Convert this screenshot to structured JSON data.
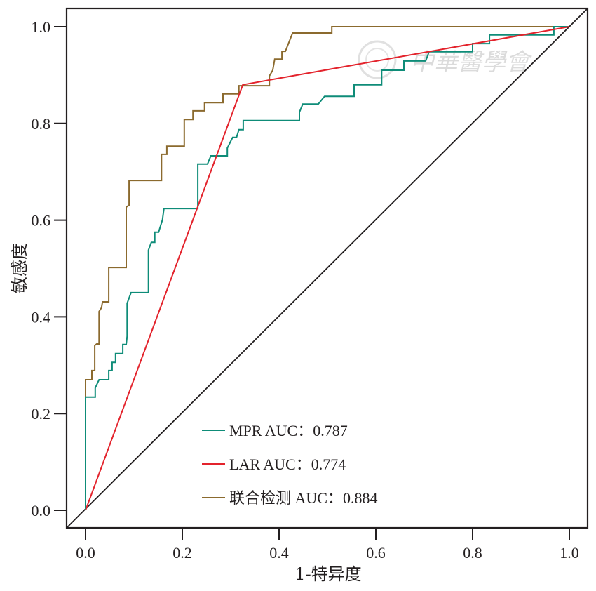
{
  "chart_data": {
    "type": "line",
    "title": "",
    "xlabel": "1-特异度",
    "ylabel": "敏感度",
    "xlim": [
      0,
      1
    ],
    "ylim": [
      0,
      1
    ],
    "x_ticks": [
      "0.0",
      "0.2",
      "0.4",
      "0.6",
      "0.8",
      "1.0"
    ],
    "y_ticks": [
      "0.0",
      "0.2",
      "0.4",
      "0.6",
      "0.8",
      "1.0"
    ],
    "x_tick_values": [
      0,
      0.2,
      0.4,
      0.6,
      0.8,
      1.0
    ],
    "y_tick_values": [
      0,
      0.2,
      0.4,
      0.6,
      0.8,
      1.0
    ],
    "grid": false,
    "legend_position": "bottom-center",
    "reference_line": {
      "name": "diagonal",
      "color": "#231f20"
    },
    "series": [
      {
        "name": "MPR",
        "legend_label": "MPR AUC：0.787",
        "auc": 0.787,
        "color": "#0e8c78",
        "points": [
          [
            0,
            0
          ],
          [
            0,
            0.234
          ],
          [
            0.02,
            0.234
          ],
          [
            0.02,
            0.253
          ],
          [
            0.028,
            0.27
          ],
          [
            0.048,
            0.27
          ],
          [
            0.048,
            0.289
          ],
          [
            0.055,
            0.289
          ],
          [
            0.055,
            0.306
          ],
          [
            0.062,
            0.306
          ],
          [
            0.062,
            0.324
          ],
          [
            0.077,
            0.324
          ],
          [
            0.077,
            0.343
          ],
          [
            0.084,
            0.343
          ],
          [
            0.086,
            0.36
          ],
          [
            0.086,
            0.428
          ],
          [
            0.094,
            0.45
          ],
          [
            0.13,
            0.45
          ],
          [
            0.13,
            0.538
          ],
          [
            0.136,
            0.554
          ],
          [
            0.143,
            0.554
          ],
          [
            0.143,
            0.575
          ],
          [
            0.151,
            0.575
          ],
          [
            0.159,
            0.601
          ],
          [
            0.162,
            0.624
          ],
          [
            0.232,
            0.624
          ],
          [
            0.232,
            0.716
          ],
          [
            0.252,
            0.716
          ],
          [
            0.259,
            0.733
          ],
          [
            0.293,
            0.733
          ],
          [
            0.293,
            0.749
          ],
          [
            0.304,
            0.771
          ],
          [
            0.312,
            0.771
          ],
          [
            0.317,
            0.787
          ],
          [
            0.326,
            0.787
          ],
          [
            0.326,
            0.806
          ],
          [
            0.442,
            0.806
          ],
          [
            0.442,
            0.823
          ],
          [
            0.449,
            0.84
          ],
          [
            0.481,
            0.84
          ],
          [
            0.494,
            0.856
          ],
          [
            0.555,
            0.856
          ],
          [
            0.555,
            0.88
          ],
          [
            0.612,
            0.88
          ],
          [
            0.612,
            0.91
          ],
          [
            0.658,
            0.91
          ],
          [
            0.658,
            0.929
          ],
          [
            0.703,
            0.929
          ],
          [
            0.71,
            0.948
          ],
          [
            0.8,
            0.948
          ],
          [
            0.8,
            0.965
          ],
          [
            0.835,
            0.965
          ],
          [
            0.835,
            0.983
          ],
          [
            0.968,
            0.983
          ],
          [
            0.968,
            1.0
          ],
          [
            1.0,
            1.0
          ]
        ]
      },
      {
        "name": "LAR",
        "legend_label": "LAR AUC：0.774",
        "auc": 0.774,
        "color": "#e3232c",
        "points": [
          [
            0,
            0
          ],
          [
            0.325,
            0.88
          ],
          [
            1.0,
            1.0
          ]
        ]
      },
      {
        "name": "联合检测",
        "legend_label": "联合检测 AUC：0.884",
        "auc": 0.884,
        "color": "#8b6a2e",
        "points": [
          [
            0,
            0
          ],
          [
            0,
            0.27
          ],
          [
            0.013,
            0.27
          ],
          [
            0.013,
            0.289
          ],
          [
            0.019,
            0.289
          ],
          [
            0.019,
            0.341
          ],
          [
            0.023,
            0.344
          ],
          [
            0.028,
            0.344
          ],
          [
            0.028,
            0.411
          ],
          [
            0.033,
            0.419
          ],
          [
            0.035,
            0.431
          ],
          [
            0.048,
            0.431
          ],
          [
            0.048,
            0.502
          ],
          [
            0.084,
            0.502
          ],
          [
            0.084,
            0.627
          ],
          [
            0.09,
            0.631
          ],
          [
            0.09,
            0.682
          ],
          [
            0.157,
            0.682
          ],
          [
            0.157,
            0.736
          ],
          [
            0.168,
            0.736
          ],
          [
            0.168,
            0.753
          ],
          [
            0.204,
            0.753
          ],
          [
            0.204,
            0.808
          ],
          [
            0.222,
            0.808
          ],
          [
            0.222,
            0.826
          ],
          [
            0.246,
            0.826
          ],
          [
            0.246,
            0.843
          ],
          [
            0.284,
            0.843
          ],
          [
            0.284,
            0.861
          ],
          [
            0.317,
            0.861
          ],
          [
            0.317,
            0.878
          ],
          [
            0.38,
            0.878
          ],
          [
            0.38,
            0.898
          ],
          [
            0.387,
            0.91
          ],
          [
            0.391,
            0.933
          ],
          [
            0.406,
            0.933
          ],
          [
            0.406,
            0.949
          ],
          [
            0.413,
            0.949
          ],
          [
            0.428,
            0.987
          ],
          [
            0.509,
            0.987
          ],
          [
            0.509,
            1.0
          ],
          [
            1.0,
            1.0
          ]
        ]
      }
    ]
  },
  "watermark": {
    "text": "中華醫學會",
    "kind": "logo"
  }
}
